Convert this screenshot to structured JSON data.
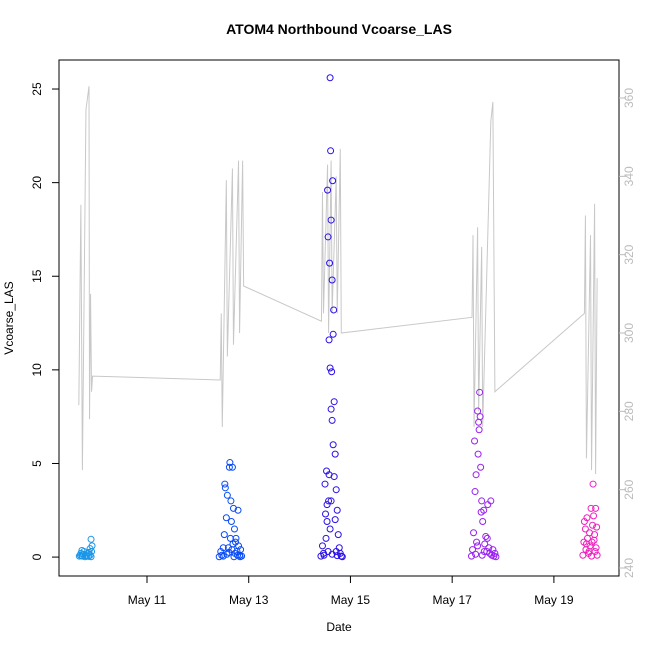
{
  "chart_data": {
    "type": "scatter",
    "title": "ATOM4 Northbound Vcoarse_LAS",
    "xlabel": "Date",
    "ylabel": "Vcoarse_LAS",
    "xlim": [
      9.27,
      20.28
    ],
    "ylim": [
      -1.01,
      26.55
    ],
    "y2lim": [
      237.96,
      369.7
    ],
    "xticks": [
      {
        "value": 11,
        "label": "May 11"
      },
      {
        "value": 13,
        "label": "May 13"
      },
      {
        "value": 15,
        "label": "May 15"
      },
      {
        "value": 17,
        "label": "May 17"
      },
      {
        "value": 19,
        "label": "May 19"
      }
    ],
    "yticks": [
      0,
      5,
      10,
      15,
      20,
      25
    ],
    "y2ticks": [
      240,
      260,
      280,
      300,
      320,
      340,
      360
    ],
    "series": [
      {
        "color": "#1a96e8",
        "x": [
          9.67,
          9.69,
          9.7,
          9.72,
          9.73,
          9.75,
          9.76,
          9.78,
          9.8,
          9.82,
          9.84,
          9.86,
          9.88,
          9.9,
          9.92,
          9.72,
          9.85,
          9.88,
          9.91,
          9.9
        ],
        "values": [
          0.05,
          0.1,
          0.2,
          0.35,
          0.05,
          0.15,
          0.3,
          0.02,
          0.1,
          0.05,
          0.2,
          0.25,
          0.45,
          0.95,
          0.6,
          0.08,
          0.04,
          0.1,
          0.3,
          0.02
        ]
      },
      {
        "color": "#0a4cf5",
        "x": [
          12.42,
          12.45,
          12.47,
          12.5,
          12.52,
          12.53,
          12.54,
          12.56,
          12.58,
          12.6,
          12.62,
          12.63,
          12.65,
          12.66,
          12.68,
          12.7,
          12.72,
          12.74,
          12.75,
          12.77,
          12.79,
          12.8,
          12.82,
          12.84,
          12.86,
          12.57,
          12.61,
          12.67,
          12.71,
          12.78,
          12.5,
          12.64,
          12.69,
          12.73,
          12.83
        ],
        "values": [
          0.02,
          0.3,
          0.1,
          0.05,
          1.2,
          3.9,
          3.7,
          2.1,
          3.3,
          0.5,
          4.8,
          5.05,
          3.0,
          1.9,
          4.8,
          2.6,
          1.5,
          0.8,
          1.0,
          0.3,
          2.5,
          0.6,
          0.1,
          0.4,
          0.05,
          0.15,
          0.25,
          0.4,
          0.02,
          0.1,
          0.5,
          1.0,
          0.7,
          0.2,
          0.02
        ]
      },
      {
        "color": "#2a10e8",
        "x": [
          14.42,
          14.45,
          14.47,
          14.5,
          14.51,
          14.53,
          14.54,
          14.55,
          14.56,
          14.57,
          14.58,
          14.59,
          14.6,
          14.61,
          14.62,
          14.63,
          14.64,
          14.65,
          14.66,
          14.67,
          14.6,
          14.62,
          14.64,
          14.66,
          14.68,
          14.7,
          14.68,
          14.72,
          14.74,
          14.76,
          14.78,
          14.8,
          14.82,
          14.58,
          14.62,
          14.7,
          14.52,
          14.48,
          14.56,
          14.64,
          14.72,
          14.84,
          14.74,
          14.6,
          14.54
        ],
        "values": [
          0.05,
          0.6,
          0.2,
          3.9,
          2.3,
          4.6,
          1.9,
          19.6,
          17.1,
          3.0,
          11.6,
          15.7,
          25.6,
          21.7,
          18.0,
          9.9,
          14.8,
          20.1,
          11.9,
          13.2,
          10.1,
          7.9,
          7.3,
          6.0,
          8.3,
          5.5,
          4.3,
          3.6,
          2.5,
          1.2,
          0.5,
          0.2,
          0.05,
          4.4,
          3.0,
          2.0,
          1.0,
          0.1,
          0.3,
          0.15,
          0.3,
          0.02,
          0.08,
          1.5,
          2.8
        ]
      },
      {
        "color": "#9a20f0",
        "x": [
          17.38,
          17.4,
          17.42,
          17.44,
          17.45,
          17.47,
          17.48,
          17.5,
          17.51,
          17.52,
          17.53,
          17.54,
          17.55,
          17.56,
          17.57,
          17.58,
          17.6,
          17.62,
          17.64,
          17.66,
          17.68,
          17.7,
          17.72,
          17.74,
          17.76,
          17.78,
          17.8,
          17.82,
          17.84,
          17.86,
          17.46,
          17.5,
          17.59,
          17.63,
          17.69
        ],
        "values": [
          0.05,
          0.4,
          1.3,
          6.2,
          3.5,
          4.4,
          0.8,
          7.8,
          5.5,
          7.2,
          6.8,
          8.8,
          7.5,
          4.8,
          2.4,
          3.0,
          1.9,
          2.5,
          0.7,
          1.1,
          0.3,
          2.8,
          0.5,
          0.2,
          3.0,
          0.1,
          0.4,
          0.05,
          0.2,
          0.02,
          0.15,
          0.6,
          0.1,
          0.3,
          1.0
        ]
      },
      {
        "color": "#f020c0",
        "x": [
          19.57,
          19.59,
          19.6,
          19.62,
          19.63,
          19.65,
          19.66,
          19.68,
          19.7,
          19.71,
          19.73,
          19.74,
          19.76,
          19.77,
          19.78,
          19.79,
          19.8,
          19.81,
          19.82,
          19.83,
          19.84,
          19.85,
          19.64,
          19.69,
          19.75
        ],
        "values": [
          0.1,
          0.8,
          1.9,
          1.5,
          0.4,
          2.1,
          1.0,
          0.2,
          1.3,
          0.6,
          2.6,
          0.05,
          1.7,
          3.9,
          2.2,
          0.9,
          1.2,
          0.3,
          2.6,
          0.5,
          1.6,
          0.1,
          0.7,
          0.3,
          0.8
        ]
      },
      {
        "type": "line",
        "axis": "y2",
        "color": "#c8c8c8",
        "x": [
          9.66,
          9.7,
          9.73,
          9.8,
          9.86,
          9.87,
          9.89,
          9.91,
          9.93,
          12.44,
          12.46,
          12.48,
          12.56,
          12.58,
          12.68,
          12.7,
          12.8,
          12.82,
          12.88,
          12.9,
          14.43,
          14.45,
          14.47,
          14.55,
          14.57,
          14.62,
          14.64,
          14.72,
          14.74,
          14.8,
          14.82,
          17.39,
          17.41,
          17.43,
          17.5,
          17.52,
          17.58,
          17.6,
          17.76,
          17.8,
          17.84,
          19.6,
          19.62,
          19.64,
          19.72,
          19.74,
          19.8,
          19.82,
          19.85
        ],
        "values": [
          281.6,
          332.7,
          265,
          357,
          363,
          278,
          310,
          285,
          289,
          288,
          305,
          276,
          339,
          294,
          342,
          297,
          344,
          300,
          344,
          312,
          303,
          336,
          305,
          343,
          300,
          344,
          305,
          340,
          305,
          347,
          300,
          304,
          325,
          276,
          327,
          280,
          322,
          276,
          354,
          359,
          285,
          305,
          330,
          268,
          325,
          265,
          333,
          264,
          314
        ]
      }
    ]
  }
}
